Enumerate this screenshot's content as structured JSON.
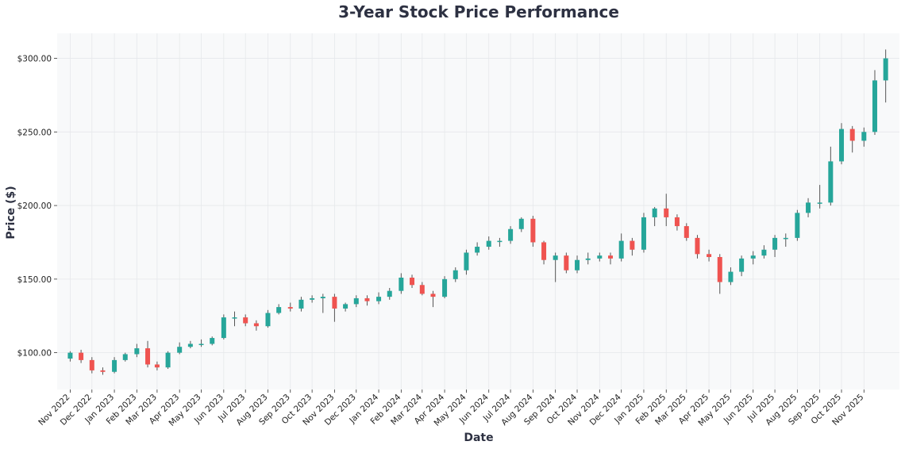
{
  "chart_data": {
    "type": "candlestick",
    "title": "3-Year Stock Price Performance",
    "xlabel": "Date",
    "ylabel": "Price ($)",
    "ylim": [
      75,
      317
    ],
    "xlim": [
      "2022-10-14",
      "2025-12-20"
    ],
    "yticks": [
      100,
      150,
      200,
      250,
      300
    ],
    "ytick_labels": [
      "$100.00",
      "$150.00",
      "$200.00",
      "$250.00",
      "$300.00"
    ],
    "xticks": [
      "2022-11-01",
      "2022-12-01",
      "2023-01-01",
      "2023-02-01",
      "2023-03-01",
      "2023-04-01",
      "2023-05-01",
      "2023-06-01",
      "2023-07-01",
      "2023-08-01",
      "2023-09-01",
      "2023-10-01",
      "2023-11-01",
      "2023-12-01",
      "2024-01-01",
      "2024-02-01",
      "2024-03-01",
      "2024-04-01",
      "2024-05-01",
      "2024-06-01",
      "2024-07-01",
      "2024-08-01",
      "2024-09-01",
      "2024-10-01",
      "2024-11-01",
      "2024-12-01",
      "2025-01-01",
      "2025-02-01",
      "2025-03-01",
      "2025-04-01",
      "2025-05-01",
      "2025-06-01",
      "2025-07-01",
      "2025-08-01",
      "2025-09-01",
      "2025-10-01",
      "2025-11-01"
    ],
    "xtick_labels": [
      "Nov 2022",
      "Dec 2022",
      "Jan 2023",
      "Feb 2023",
      "Mar 2023",
      "Apr 2023",
      "May 2023",
      "Jun 2023",
      "Jul 2023",
      "Aug 2023",
      "Sep 2023",
      "Oct 2023",
      "Nov 2023",
      "Dec 2023",
      "Jan 2024",
      "Feb 2024",
      "Mar 2024",
      "Apr 2024",
      "May 2024",
      "Jun 2024",
      "Jul 2024",
      "Aug 2024",
      "Sep 2024",
      "Oct 2024",
      "Nov 2024",
      "Dec 2024",
      "Jan 2025",
      "Feb 2025",
      "Mar 2025",
      "Apr 2025",
      "May 2025",
      "Jun 2025",
      "Jul 2025",
      "Aug 2025",
      "Sep 2025",
      "Oct 2025",
      "Nov 2025"
    ],
    "grid": true,
    "colors": {
      "up": "#26a69a",
      "down": "#ef5350",
      "wick": "#555555",
      "plot_bg": "#f8f9fa",
      "grid": "#e6e8eb"
    },
    "series": [
      {
        "x": [
          "2022-11-01",
          "2022-11-16",
          "2022-12-01",
          "2022-12-16",
          "2023-01-01",
          "2023-01-16",
          "2023-02-01",
          "2023-02-16",
          "2023-03-01",
          "2023-03-16",
          "2023-04-01",
          "2023-04-16",
          "2023-05-01",
          "2023-05-16",
          "2023-06-01",
          "2023-06-16",
          "2023-07-01",
          "2023-07-16",
          "2023-08-01",
          "2023-08-16",
          "2023-09-01",
          "2023-09-16",
          "2023-10-01",
          "2023-10-16",
          "2023-11-01",
          "2023-11-16",
          "2023-12-01",
          "2023-12-16",
          "2024-01-01",
          "2024-01-16",
          "2024-02-01",
          "2024-02-16",
          "2024-03-01",
          "2024-03-16",
          "2024-04-01",
          "2024-04-16",
          "2024-05-01",
          "2024-05-16",
          "2024-06-01",
          "2024-06-16",
          "2024-07-01",
          "2024-07-16",
          "2024-08-01",
          "2024-08-16",
          "2024-09-01",
          "2024-09-16",
          "2024-10-01",
          "2024-10-16",
          "2024-11-01",
          "2024-11-16",
          "2024-12-01",
          "2024-12-16",
          "2025-01-01",
          "2025-01-16",
          "2025-02-01",
          "2025-02-16",
          "2025-03-01",
          "2025-03-16",
          "2025-04-01",
          "2025-04-16",
          "2025-05-01",
          "2025-05-16",
          "2025-06-01",
          "2025-06-16",
          "2025-07-01",
          "2025-07-16",
          "2025-08-01",
          "2025-08-16",
          "2025-09-01",
          "2025-09-16",
          "2025-10-01",
          "2025-10-16",
          "2025-11-01",
          "2025-11-16",
          "2025-12-01"
        ],
        "open": [
          96,
          100,
          95,
          88,
          87,
          95,
          99,
          103,
          92,
          90,
          100,
          104,
          106,
          106,
          110,
          124,
          124,
          120,
          118,
          127,
          131,
          130,
          136,
          137,
          138,
          130,
          133,
          137,
          135,
          138,
          142,
          151,
          146,
          140,
          138,
          150,
          156,
          168,
          172,
          176,
          176,
          184,
          191,
          175,
          163,
          166,
          156,
          163,
          164,
          166,
          164,
          176,
          170,
          192,
          198,
          192,
          186,
          178,
          167,
          165,
          148,
          155,
          164,
          166,
          170,
          178,
          178,
          195,
          202,
          202,
          230,
          252,
          244,
          250,
          285
        ],
        "high": [
          101,
          102,
          97,
          90,
          97,
          100,
          106,
          108,
          94,
          101,
          107,
          108,
          109,
          111,
          126,
          128,
          126,
          122,
          129,
          133,
          134,
          138,
          139,
          140,
          140,
          134,
          139,
          139,
          141,
          144,
          154,
          153,
          148,
          142,
          152,
          158,
          170,
          175,
          179,
          178,
          186,
          192,
          193,
          176,
          168,
          168,
          166,
          168,
          168,
          168,
          181,
          178,
          195,
          199,
          208,
          194,
          188,
          180,
          170,
          167,
          158,
          166,
          169,
          173,
          180,
          181,
          197,
          205,
          214,
          240,
          256,
          254,
          253,
          292,
          306
        ],
        "low": [
          94,
          93,
          86,
          85,
          86,
          94,
          97,
          90,
          88,
          89,
          99,
          103,
          104,
          105,
          109,
          118,
          118,
          115,
          117,
          126,
          128,
          128,
          134,
          127,
          121,
          128,
          131,
          132,
          133,
          136,
          140,
          144,
          139,
          131,
          137,
          148,
          153,
          166,
          170,
          172,
          174,
          182,
          172,
          160,
          148,
          154,
          154,
          160,
          162,
          160,
          162,
          166,
          168,
          186,
          186,
          183,
          176,
          164,
          162,
          140,
          146,
          152,
          160,
          164,
          165,
          172,
          176,
          192,
          198,
          200,
          228,
          236,
          240,
          248,
          270
        ],
        "close": [
          100,
          95,
          88,
          87,
          95,
          99,
          103,
          92,
          90,
          100,
          104,
          106,
          106,
          110,
          124,
          124,
          120,
          118,
          127,
          131,
          130,
          136,
          137,
          138,
          130,
          133,
          137,
          135,
          138,
          142,
          151,
          146,
          140,
          138,
          150,
          156,
          168,
          172,
          176,
          176,
          184,
          191,
          175,
          163,
          166,
          156,
          163,
          164,
          166,
          164,
          176,
          170,
          192,
          198,
          192,
          186,
          178,
          167,
          165,
          148,
          155,
          164,
          166,
          170,
          178,
          178,
          195,
          202,
          202,
          230,
          252,
          244,
          250,
          285,
          300
        ]
      }
    ]
  }
}
